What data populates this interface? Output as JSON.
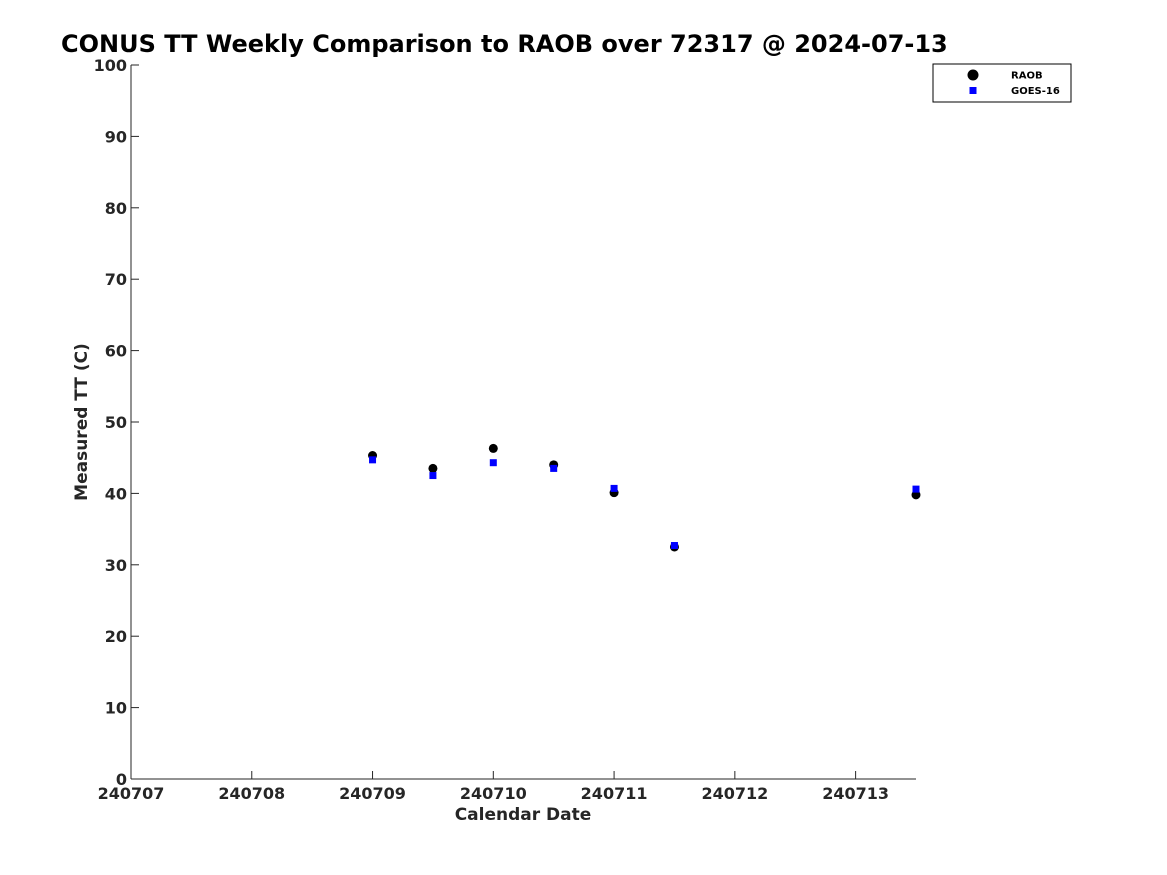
{
  "chart_data": {
    "type": "scatter",
    "title": "CONUS TT Weekly Comparison to RAOB over 72317 @ 2024-07-13",
    "xlabel": "Calendar Date",
    "ylabel": "Measured TT (C)",
    "x_ticks": [
      "240707",
      "240708",
      "240709",
      "240710",
      "240711",
      "240712",
      "240713"
    ],
    "xlim": [
      0,
      6.5
    ],
    "ylim": [
      0,
      100
    ],
    "y_ticks": [
      0,
      10,
      20,
      30,
      40,
      50,
      60,
      70,
      80,
      90,
      100
    ],
    "grid": false,
    "legend_position": "top-right",
    "series": [
      {
        "name": "RAOB",
        "marker": "circle",
        "color": "#000000",
        "points": [
          {
            "x": 2.0,
            "y": 45.3
          },
          {
            "x": 2.5,
            "y": 43.5
          },
          {
            "x": 3.0,
            "y": 46.3
          },
          {
            "x": 3.5,
            "y": 44.0
          },
          {
            "x": 4.0,
            "y": 40.1
          },
          {
            "x": 4.5,
            "y": 32.5
          },
          {
            "x": 6.5,
            "y": 39.8
          }
        ]
      },
      {
        "name": "GOES-16",
        "marker": "square",
        "color": "#0000ff",
        "points": [
          {
            "x": 2.0,
            "y": 44.7
          },
          {
            "x": 2.5,
            "y": 42.5
          },
          {
            "x": 3.0,
            "y": 44.3
          },
          {
            "x": 3.5,
            "y": 43.5
          },
          {
            "x": 4.0,
            "y": 40.7
          },
          {
            "x": 4.5,
            "y": 32.7
          },
          {
            "x": 6.5,
            "y": 40.6
          }
        ]
      }
    ]
  }
}
